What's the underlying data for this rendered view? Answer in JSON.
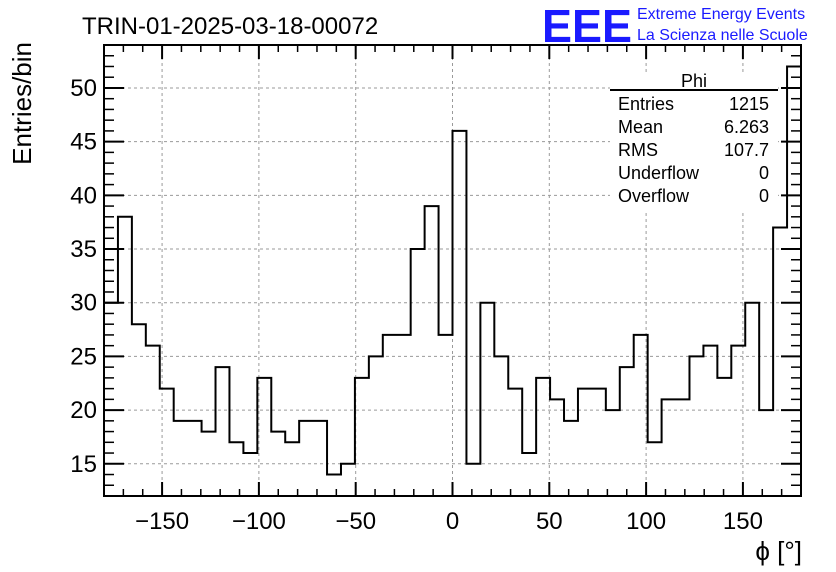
{
  "chart_data": {
    "type": "histogram",
    "title": "TRIN-01-2025-03-18-00072",
    "xlabel": "ϕ [°]",
    "ylabel": "Entries/bin",
    "xlim": [
      -180,
      180
    ],
    "ylim": [
      12,
      54
    ],
    "grid": true,
    "x_ticks": [
      -150,
      -100,
      -50,
      0,
      50,
      100,
      150
    ],
    "x_tick_labels": [
      "−150",
      "−100",
      "−50",
      "0",
      "50",
      "100",
      "150"
    ],
    "y_ticks": [
      15,
      20,
      25,
      30,
      35,
      40,
      45,
      50
    ],
    "y_tick_labels": [
      "15",
      "20",
      "25",
      "30",
      "35",
      "40",
      "45",
      "50"
    ],
    "bin_edges_start": -180,
    "bin_width": 7.2,
    "values": [
      30,
      38,
      28,
      26,
      22,
      19,
      19,
      18,
      24,
      17,
      16,
      23,
      18,
      17,
      19,
      19,
      14,
      15,
      23,
      25,
      27,
      27,
      35,
      39,
      27,
      46,
      15,
      30,
      25,
      22,
      16,
      23,
      21,
      19,
      22,
      22,
      20,
      24,
      27,
      17,
      21,
      21,
      25,
      26,
      23,
      26,
      30,
      20,
      37,
      52
    ],
    "stats": {
      "name": "Phi",
      "rows": [
        {
          "label": "Entries",
          "value": "1215"
        },
        {
          "label": "Mean",
          "value": "6.263"
        },
        {
          "label": "RMS",
          "value": "107.7"
        },
        {
          "label": "Underflow",
          "value": "0"
        },
        {
          "label": "Overflow",
          "value": "0"
        }
      ]
    }
  },
  "logo": {
    "mark": "EEE",
    "line1": "Extreme Energy Events",
    "line2": "La Scienza nelle Scuole",
    "color": "#1a1aff"
  },
  "colors": {
    "line": "#000000",
    "grid": "#9a9a9a",
    "background": "#ffffff"
  }
}
